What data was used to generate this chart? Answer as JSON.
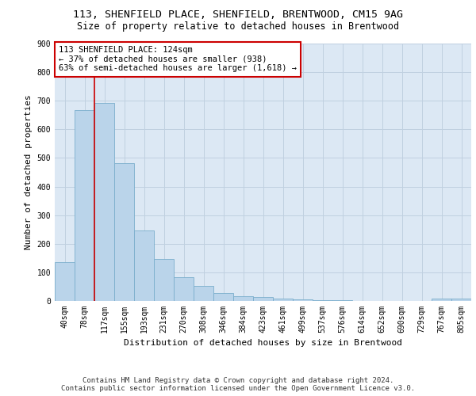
{
  "title1": "113, SHENFIELD PLACE, SHENFIELD, BRENTWOOD, CM15 9AG",
  "title2": "Size of property relative to detached houses in Brentwood",
  "xlabel": "Distribution of detached houses by size in Brentwood",
  "ylabel": "Number of detached properties",
  "footer1": "Contains HM Land Registry data © Crown copyright and database right 2024.",
  "footer2": "Contains public sector information licensed under the Open Government Licence v3.0.",
  "bar_labels": [
    "40sqm",
    "78sqm",
    "117sqm",
    "155sqm",
    "193sqm",
    "231sqm",
    "270sqm",
    "308sqm",
    "346sqm",
    "384sqm",
    "423sqm",
    "461sqm",
    "499sqm",
    "537sqm",
    "576sqm",
    "614sqm",
    "652sqm",
    "690sqm",
    "729sqm",
    "767sqm",
    "805sqm"
  ],
  "bar_values": [
    135,
    667,
    693,
    483,
    247,
    148,
    84,
    52,
    27,
    18,
    13,
    8,
    5,
    3,
    3,
    0,
    0,
    0,
    0,
    8,
    8
  ],
  "bar_color": "#bad4ea",
  "bar_edge_color": "#7aaecc",
  "vline_x": 1.5,
  "annotation_title": "113 SHENFIELD PLACE: 124sqm",
  "annotation_line1": "← 37% of detached houses are smaller (938)",
  "annotation_line2": "63% of semi-detached houses are larger (1,618) →",
  "annotation_box_color": "#ffffff",
  "annotation_box_edgecolor": "#cc0000",
  "vline_color": "#cc0000",
  "grid_color": "#c0d0e0",
  "background_color": "#dce8f4",
  "ylim": [
    0,
    900
  ],
  "yticks": [
    0,
    100,
    200,
    300,
    400,
    500,
    600,
    700,
    800,
    900
  ],
  "title1_fontsize": 9.5,
  "title2_fontsize": 8.5,
  "xlabel_fontsize": 8,
  "ylabel_fontsize": 8,
  "tick_fontsize": 7,
  "annotation_fontsize": 7.5,
  "footer_fontsize": 6.5
}
